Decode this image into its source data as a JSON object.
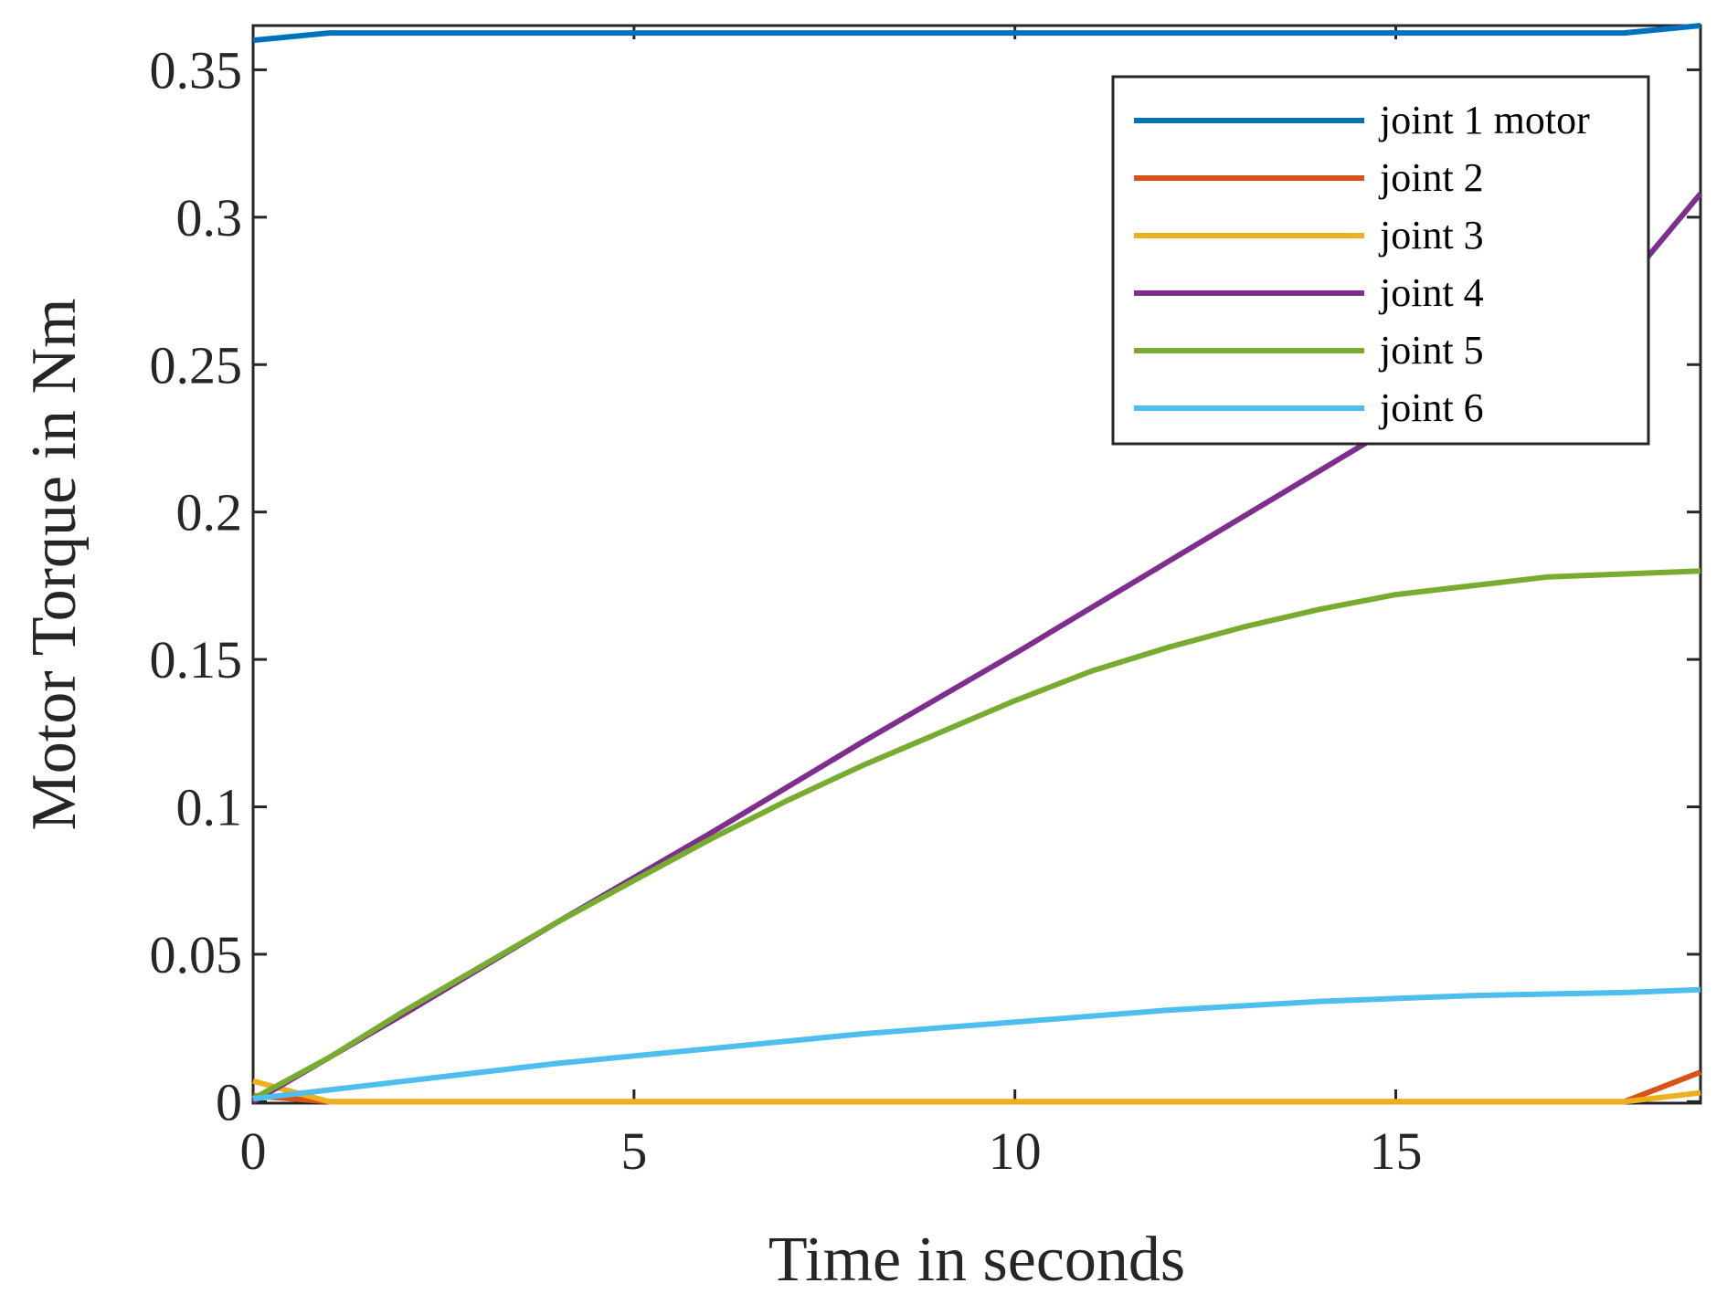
{
  "chart_data": {
    "type": "line",
    "xlabel": "Time in seconds",
    "ylabel": "Motor Torque in Nm",
    "xlim": [
      0,
      19
    ],
    "ylim": [
      -0.0005,
      0.365
    ],
    "xticks": [
      0,
      5,
      10,
      15
    ],
    "xtick_labels": [
      "0",
      "5",
      "10",
      "15"
    ],
    "yticks": [
      0,
      0.05,
      0.1,
      0.15,
      0.2,
      0.25,
      0.3,
      0.35
    ],
    "ytick_labels": [
      "0",
      "0.05",
      "0.1",
      "0.15",
      "0.2",
      "0.25",
      "0.3",
      "0.35"
    ],
    "grid": false,
    "legend_position": "top-right",
    "series": [
      {
        "name": "joint 1 motor",
        "color": "#0072BD",
        "x": [
          0,
          1,
          2,
          4,
          6,
          8,
          10,
          12,
          14,
          16,
          18,
          19
        ],
        "y": [
          0.36,
          0.3625,
          0.3625,
          0.3625,
          0.3625,
          0.3625,
          0.3625,
          0.3625,
          0.3625,
          0.3625,
          0.3625,
          0.365
        ]
      },
      {
        "name": "joint 2",
        "color": "#D95319",
        "x": [
          0,
          1,
          4,
          8,
          12,
          16,
          18,
          19
        ],
        "y": [
          0.002,
          0,
          0,
          0,
          0,
          0,
          0,
          0.01
        ]
      },
      {
        "name": "joint 3",
        "color": "#EDB120",
        "x": [
          0,
          1,
          4,
          8,
          12,
          16,
          18,
          19
        ],
        "y": [
          0.007,
          0,
          0,
          0,
          0,
          0,
          0,
          0.003
        ]
      },
      {
        "name": "joint 4",
        "color": "#7E2F8E",
        "x": [
          0,
          2,
          4,
          6,
          8,
          10,
          12,
          14,
          16,
          18,
          19
        ],
        "y": [
          0,
          0.03,
          0.061,
          0.091,
          0.122,
          0.152,
          0.183,
          0.214,
          0.245,
          0.277,
          0.308
        ]
      },
      {
        "name": "joint 5",
        "color": "#77AC30",
        "x": [
          0,
          1,
          2,
          3,
          4,
          5,
          6,
          7,
          8,
          9,
          10,
          11,
          12,
          13,
          14,
          15,
          16,
          17,
          18,
          19
        ],
        "y": [
          0.001,
          0.015,
          0.031,
          0.046,
          0.061,
          0.075,
          0.089,
          0.102,
          0.114,
          0.125,
          0.136,
          0.146,
          0.154,
          0.161,
          0.167,
          0.172,
          0.175,
          0.178,
          0.179,
          0.18
        ]
      },
      {
        "name": "joint 6",
        "color": "#4DBEEE",
        "x": [
          0,
          1,
          2,
          4,
          6,
          8,
          10,
          12,
          14,
          16,
          18,
          19
        ],
        "y": [
          0.001,
          0.004,
          0.007,
          0.013,
          0.018,
          0.023,
          0.027,
          0.031,
          0.034,
          0.036,
          0.037,
          0.038
        ]
      }
    ]
  }
}
